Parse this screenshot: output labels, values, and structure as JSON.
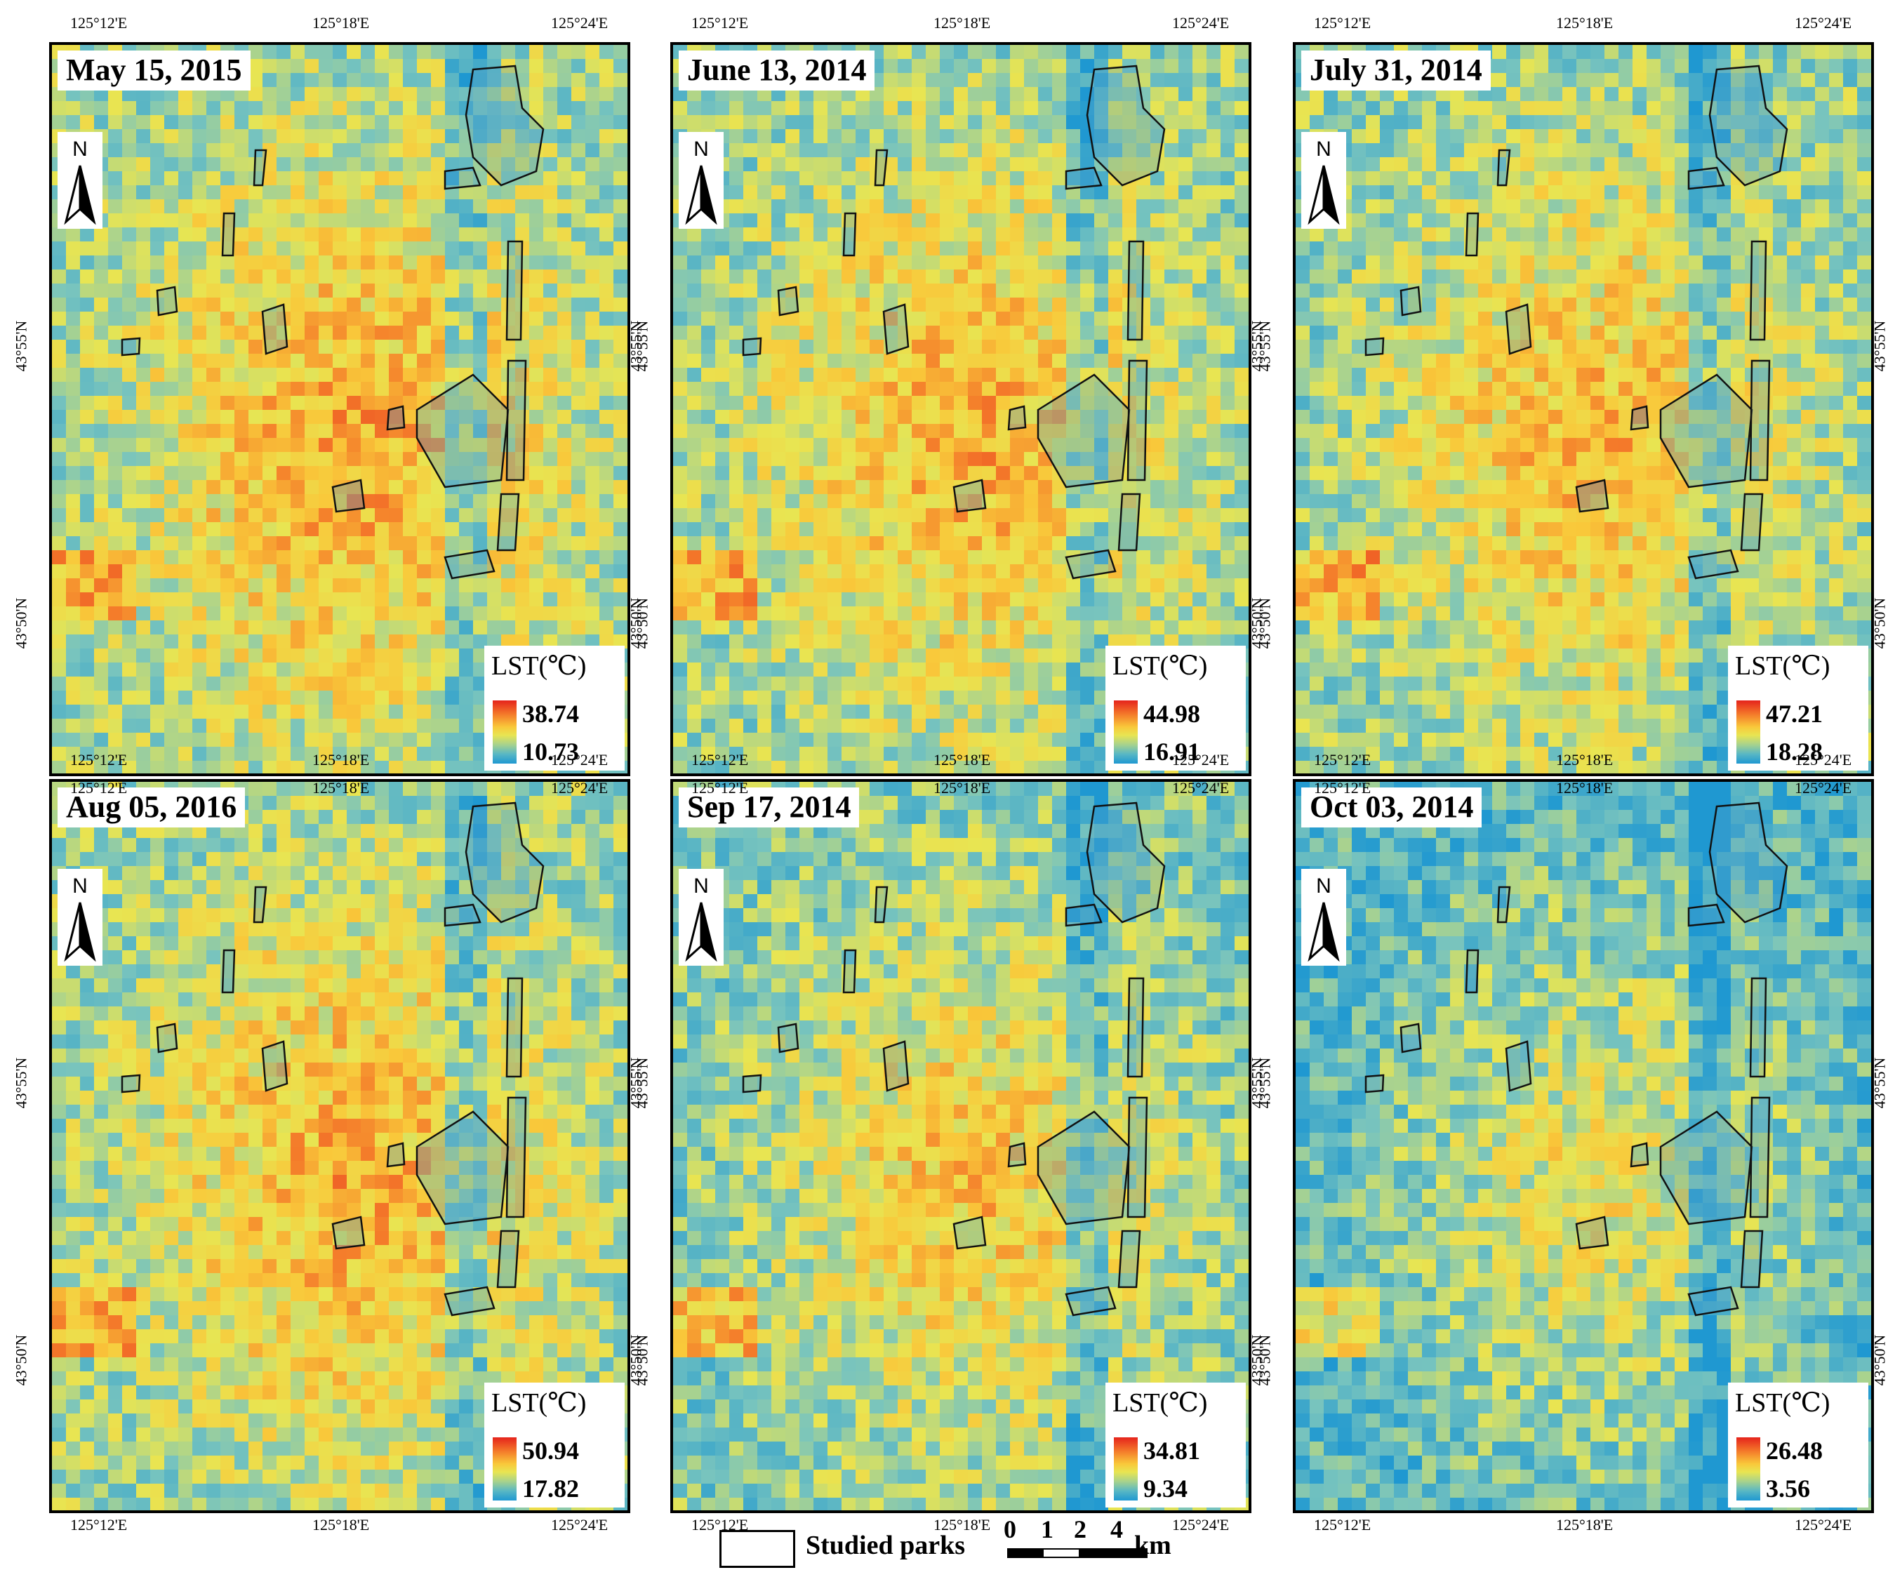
{
  "colors": {
    "hot": "#e5231c",
    "warm": "#f9a33a",
    "mid": "#eae353",
    "cool": "#8cc8a8",
    "cold": "#1f98d1",
    "park_outline": "#111111"
  },
  "axis_ticks": {
    "lon": [
      "125°12'E",
      "125°18'E",
      "125°24'E"
    ],
    "lat": [
      "43°55'N",
      "43°50'N"
    ]
  },
  "north_label": "N",
  "legend_title": "LST(℃)",
  "panels": [
    {
      "date": "May 15, 2015",
      "max": "38.74",
      "min": "10.73",
      "warmth": 0.62
    },
    {
      "date": "June 13, 2014",
      "max": "44.98",
      "min": "16.91",
      "warmth": 0.58
    },
    {
      "date": "July 31, 2014",
      "max": "47.21",
      "min": "18.28",
      "warmth": 0.55
    },
    {
      "date": "Aug 05, 2016",
      "max": "50.94",
      "min": "17.82",
      "warmth": 0.6
    },
    {
      "date": "Sep 17, 2014",
      "max": "34.81",
      "min": "9.34",
      "warmth": 0.48
    },
    {
      "date": "Oct 03, 2014",
      "max": "26.48",
      "min": "3.56",
      "warmth": 0.3
    }
  ],
  "footer": {
    "park_legend": "Studied parks",
    "scale_numbers": [
      "0",
      "1",
      "2",
      "4"
    ],
    "scale_unit": "km"
  }
}
